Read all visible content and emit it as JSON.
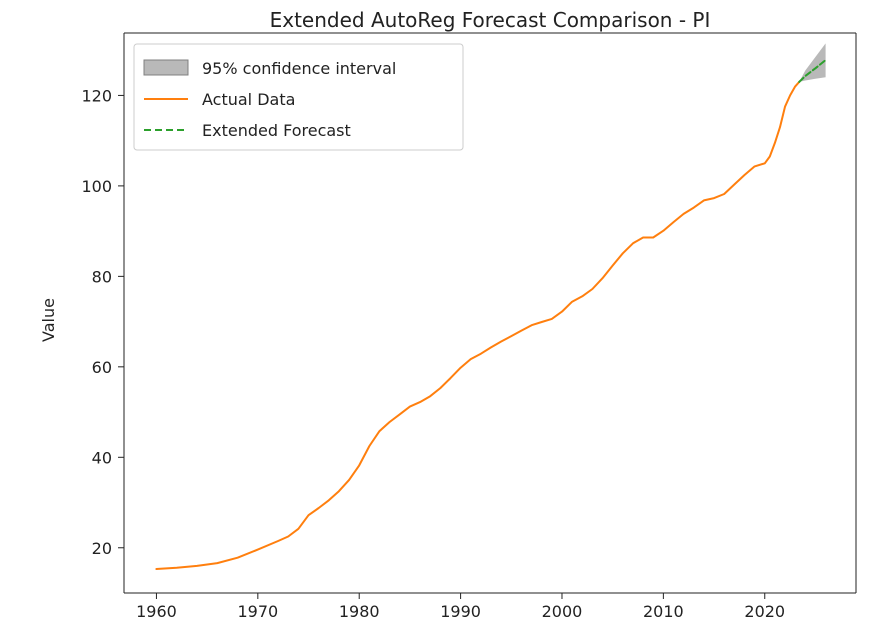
{
  "chart_data": {
    "type": "line",
    "title": "Extended AutoReg Forecast Comparison - PI",
    "xlabel": "",
    "ylabel": "Value",
    "xlim": [
      1956.8,
      2029.0
    ],
    "ylim": [
      10.0,
      133.8
    ],
    "xticks": [
      1960,
      1970,
      1980,
      1990,
      2000,
      2010,
      2020
    ],
    "yticks": [
      20,
      40,
      60,
      80,
      100,
      120
    ],
    "grid": false,
    "legend_position": "top-left",
    "legend": {
      "ci_label": "95% confidence interval",
      "actual_label": "Actual Data",
      "forecast_label": "Extended Forecast"
    },
    "colors": {
      "actual": "#ff7f0e",
      "forecast": "#2ca02c",
      "ci_fill": "#808080"
    },
    "series": [
      {
        "name": "Actual Data",
        "style": "solid",
        "x": [
          1960,
          1962,
          1964,
          1966,
          1968,
          1970,
          1972,
          1973,
          1974,
          1975,
          1976,
          1977,
          1978,
          1979,
          1980,
          1981,
          1982,
          1983,
          1984,
          1985,
          1986,
          1987,
          1988,
          1989,
          1990,
          1991,
          1992,
          1993,
          1994,
          1995,
          1996,
          1997,
          1998,
          1999,
          2000,
          2001,
          2002,
          2003,
          2004,
          2005,
          2006,
          2007,
          2008,
          2009,
          2010,
          2011,
          2012,
          2013,
          2014,
          2015,
          2016,
          2017,
          2018,
          2019,
          2020,
          2020.5,
          2021,
          2021.5,
          2022,
          2022.5,
          2023,
          2023.4
        ],
        "values": [
          15.3,
          15.6,
          16.0,
          16.6,
          17.8,
          19.6,
          21.5,
          22.5,
          24.2,
          27.2,
          28.8,
          30.5,
          32.5,
          35.0,
          38.2,
          42.5,
          45.8,
          47.8,
          49.5,
          51.2,
          52.2,
          53.5,
          55.3,
          57.5,
          59.8,
          61.7,
          62.9,
          64.3,
          65.6,
          66.8,
          68.0,
          69.2,
          69.9,
          70.6,
          72.2,
          74.4,
          75.6,
          77.2,
          79.6,
          82.4,
          85.1,
          87.3,
          88.6,
          88.6,
          90.1,
          92.0,
          93.8,
          95.2,
          96.8,
          97.3,
          98.2,
          100.3,
          102.4,
          104.3,
          105.0,
          106.5,
          109.5,
          113.0,
          117.5,
          120.0,
          122.0,
          123.0
        ]
      },
      {
        "name": "Extended Forecast",
        "style": "dashed",
        "x": [
          2023.4,
          2024,
          2025,
          2026
        ],
        "values": [
          123.0,
          124.3,
          126.0,
          127.8
        ]
      }
    ],
    "confidence_interval": {
      "x": [
        2023.4,
        2024,
        2025,
        2026
      ],
      "lower": [
        123.0,
        123.3,
        123.7,
        124.0
      ],
      "upper": [
        123.0,
        125.5,
        128.5,
        131.5
      ]
    }
  }
}
